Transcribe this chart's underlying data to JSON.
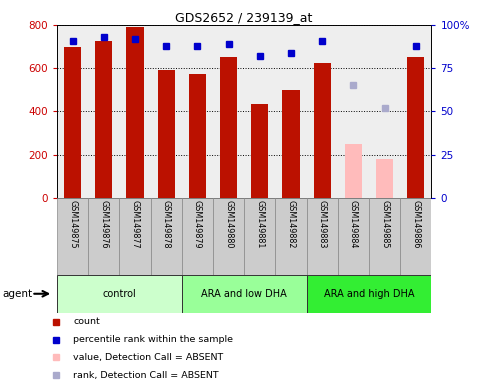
{
  "title": "GDS2652 / 239139_at",
  "samples": [
    "GSM149875",
    "GSM149876",
    "GSM149877",
    "GSM149878",
    "GSM149879",
    "GSM149880",
    "GSM149881",
    "GSM149882",
    "GSM149883",
    "GSM149884",
    "GSM149885",
    "GSM149886"
  ],
  "bar_values": [
    697,
    728,
    790,
    592,
    572,
    651,
    432,
    499,
    622,
    null,
    null,
    651
  ],
  "absent_bar_values": [
    null,
    null,
    null,
    null,
    null,
    null,
    null,
    null,
    null,
    248,
    180,
    null
  ],
  "percentile_normal": [
    91,
    93,
    92,
    88,
    88,
    89,
    82,
    84,
    91,
    null,
    null,
    88
  ],
  "percentile_absent": [
    null,
    null,
    null,
    null,
    null,
    null,
    null,
    null,
    null,
    65,
    52,
    null
  ],
  "bar_color_normal": "#bb1100",
  "bar_color_absent": "#ffbbbb",
  "pct_color_normal": "#0000cc",
  "pct_color_absent": "#aaaacc",
  "ylim": [
    0,
    800
  ],
  "y2lim": [
    0,
    100
  ],
  "yticks": [
    0,
    200,
    400,
    600,
    800
  ],
  "y2ticks": [
    0,
    25,
    50,
    75,
    100
  ],
  "pct_scale": 8.0,
  "groups": [
    {
      "label": "control",
      "start": 0,
      "end": 3,
      "color": "#ccffcc"
    },
    {
      "label": "ARA and low DHA",
      "start": 4,
      "end": 7,
      "color": "#99ff99"
    },
    {
      "label": "ARA and high DHA",
      "start": 8,
      "end": 11,
      "color": "#33ee33"
    }
  ],
  "legend_items": [
    {
      "label": "count",
      "color": "#bb1100"
    },
    {
      "label": "percentile rank within the sample",
      "color": "#0000cc"
    },
    {
      "label": "value, Detection Call = ABSENT",
      "color": "#ffbbbb"
    },
    {
      "label": "rank, Detection Call = ABSENT",
      "color": "#aaaacc"
    }
  ],
  "left_tick_color": "#cc0000",
  "right_tick_color": "#0000cc",
  "plot_bg": "#eeeeee",
  "fig_bg": "#ffffff",
  "bar_width": 0.55
}
